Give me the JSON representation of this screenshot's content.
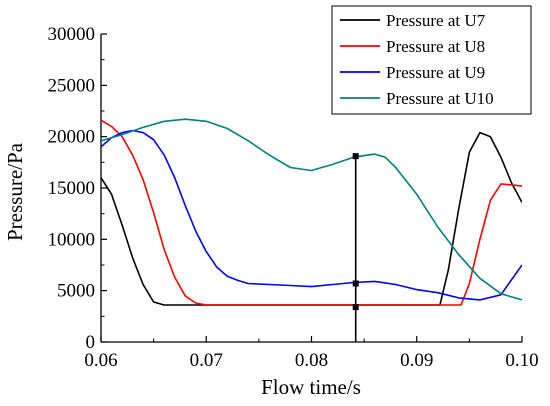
{
  "chart_data": {
    "type": "line",
    "title": "",
    "xlabel": "Flow time/s",
    "ylabel": "Pressure/Pa",
    "xlim": [
      0.06,
      0.1
    ],
    "ylim": [
      0,
      30000
    ],
    "x_ticks": [
      "0.06",
      "0.07",
      "0.08",
      "0.09",
      "0.10"
    ],
    "x_tick_values": [
      0.06,
      0.07,
      0.08,
      0.09,
      0.1
    ],
    "y_ticks": [
      "0",
      "5000",
      "10000",
      "15000",
      "20000",
      "25000",
      "30000"
    ],
    "y_tick_values": [
      0,
      5000,
      10000,
      15000,
      20000,
      25000,
      30000
    ],
    "legend_position": "top-right",
    "grid": false,
    "series": [
      {
        "name": "Pressure at U7",
        "color": "#000000",
        "points": [
          [
            0.06,
            16000
          ],
          [
            0.061,
            14400
          ],
          [
            0.062,
            11400
          ],
          [
            0.063,
            8200
          ],
          [
            0.064,
            5600
          ],
          [
            0.065,
            3900
          ],
          [
            0.066,
            3600
          ],
          [
            0.07,
            3600
          ],
          [
            0.08,
            3600
          ],
          [
            0.09,
            3600
          ],
          [
            0.0922,
            3600
          ],
          [
            0.093,
            7000
          ],
          [
            0.094,
            13000
          ],
          [
            0.095,
            18500
          ],
          [
            0.096,
            20400
          ],
          [
            0.0965,
            20200
          ],
          [
            0.097,
            20000
          ],
          [
            0.098,
            18000
          ],
          [
            0.099,
            15500
          ],
          [
            0.1,
            13600
          ]
        ]
      },
      {
        "name": "Pressure at U8",
        "color": "#ff0000",
        "points": [
          [
            0.06,
            21600
          ],
          [
            0.061,
            21000
          ],
          [
            0.062,
            20000
          ],
          [
            0.063,
            18200
          ],
          [
            0.064,
            15800
          ],
          [
            0.065,
            12600
          ],
          [
            0.066,
            9000
          ],
          [
            0.067,
            6300
          ],
          [
            0.068,
            4500
          ],
          [
            0.069,
            3800
          ],
          [
            0.07,
            3600
          ],
          [
            0.08,
            3600
          ],
          [
            0.09,
            3600
          ],
          [
            0.0942,
            3600
          ],
          [
            0.095,
            5700
          ],
          [
            0.096,
            10000
          ],
          [
            0.097,
            13800
          ],
          [
            0.098,
            15400
          ],
          [
            0.099,
            15300
          ],
          [
            0.1,
            15200
          ]
        ]
      },
      {
        "name": "Pressure at U9",
        "color": "#0000ff",
        "points": [
          [
            0.06,
            19000
          ],
          [
            0.061,
            19900
          ],
          [
            0.062,
            20400
          ],
          [
            0.063,
            20600
          ],
          [
            0.064,
            20400
          ],
          [
            0.065,
            19700
          ],
          [
            0.066,
            18200
          ],
          [
            0.067,
            16000
          ],
          [
            0.068,
            13300
          ],
          [
            0.069,
            10800
          ],
          [
            0.07,
            8800
          ],
          [
            0.071,
            7300
          ],
          [
            0.072,
            6400
          ],
          [
            0.073,
            6000
          ],
          [
            0.074,
            5700
          ],
          [
            0.076,
            5600
          ],
          [
            0.078,
            5500
          ],
          [
            0.08,
            5400
          ],
          [
            0.082,
            5600
          ],
          [
            0.084,
            5800
          ],
          [
            0.086,
            5900
          ],
          [
            0.088,
            5600
          ],
          [
            0.09,
            5100
          ],
          [
            0.092,
            4800
          ],
          [
            0.094,
            4300
          ],
          [
            0.096,
            4100
          ],
          [
            0.098,
            4600
          ],
          [
            0.1,
            7500
          ]
        ]
      },
      {
        "name": "Pressure at U10",
        "color": "#008080",
        "points": [
          [
            0.06,
            19600
          ],
          [
            0.062,
            20200
          ],
          [
            0.064,
            20900
          ],
          [
            0.066,
            21500
          ],
          [
            0.068,
            21700
          ],
          [
            0.07,
            21500
          ],
          [
            0.072,
            20800
          ],
          [
            0.074,
            19600
          ],
          [
            0.076,
            18200
          ],
          [
            0.078,
            17000
          ],
          [
            0.08,
            16700
          ],
          [
            0.082,
            17300
          ],
          [
            0.084,
            18000
          ],
          [
            0.086,
            18300
          ],
          [
            0.087,
            18000
          ],
          [
            0.088,
            17000
          ],
          [
            0.09,
            14400
          ],
          [
            0.092,
            11200
          ],
          [
            0.094,
            8500
          ],
          [
            0.096,
            6200
          ],
          [
            0.098,
            4700
          ],
          [
            0.1,
            4100
          ]
        ]
      }
    ],
    "marker_line": {
      "x": 0.0842,
      "y_range": [
        0,
        18100
      ],
      "markers": [
        18100,
        5700,
        3400
      ]
    }
  }
}
